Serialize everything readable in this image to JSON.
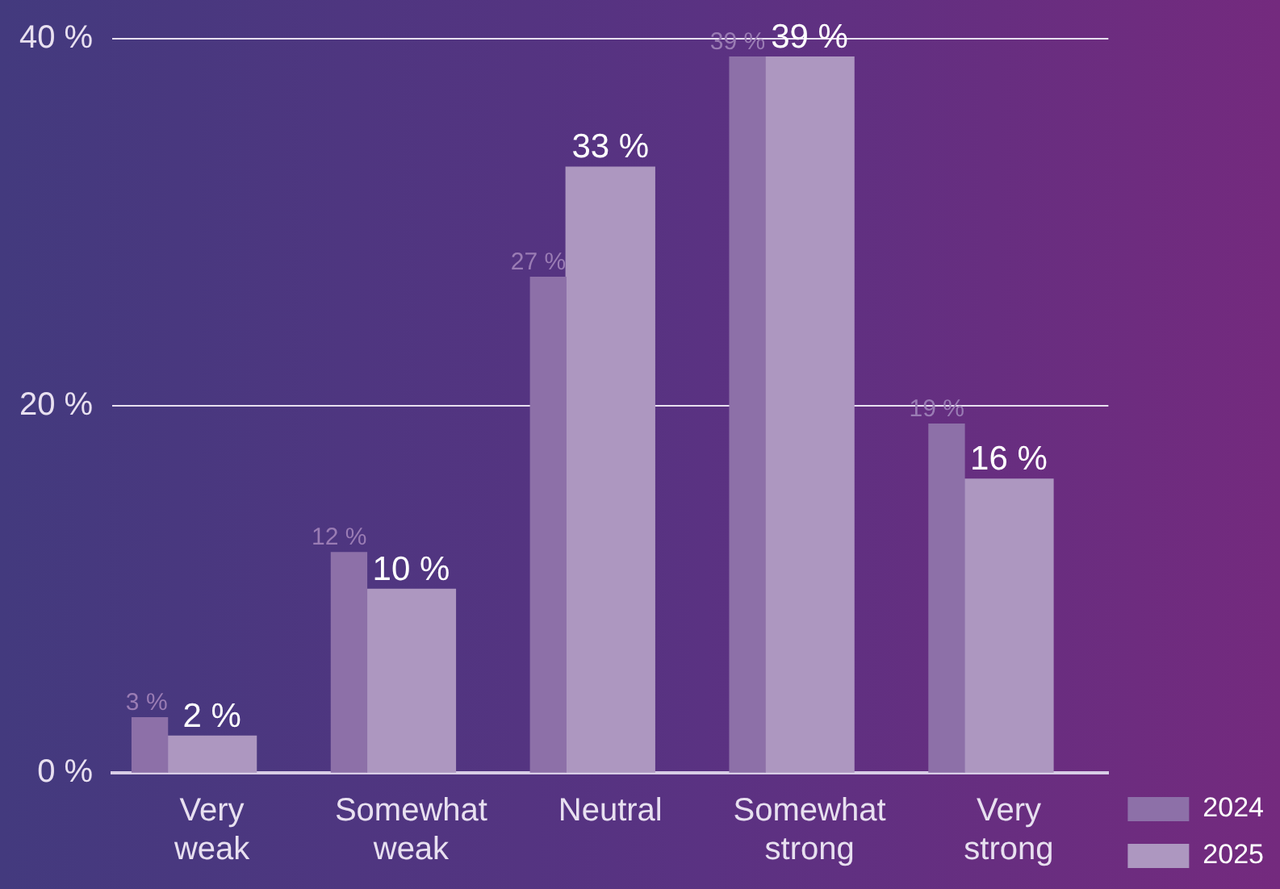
{
  "chart_data": {
    "type": "bar",
    "categories": [
      "Very weak",
      "Somewhat weak",
      "Neutral",
      "Somewhat strong",
      "Very strong"
    ],
    "series": [
      {
        "name": "2024",
        "color": "#8d70a8",
        "values": [
          3,
          12,
          27,
          39,
          19
        ],
        "value_labels": [
          "3 %",
          "12 %",
          "27 %",
          "39 %",
          "19 %"
        ]
      },
      {
        "name": "2025",
        "color": "#ad97c0",
        "values": [
          2,
          10,
          33,
          39,
          16
        ],
        "value_labels": [
          "2 %",
          "10 %",
          "33 %",
          "39 %",
          "16 %"
        ]
      }
    ],
    "ylim": [
      0,
      40
    ],
    "yticks": [
      {
        "value": 0,
        "label": "0 %"
      },
      {
        "value": 20,
        "label": "20 %"
      },
      {
        "value": 40,
        "label": "40 %"
      }
    ],
    "grid": "y",
    "legend": "bottom right"
  }
}
